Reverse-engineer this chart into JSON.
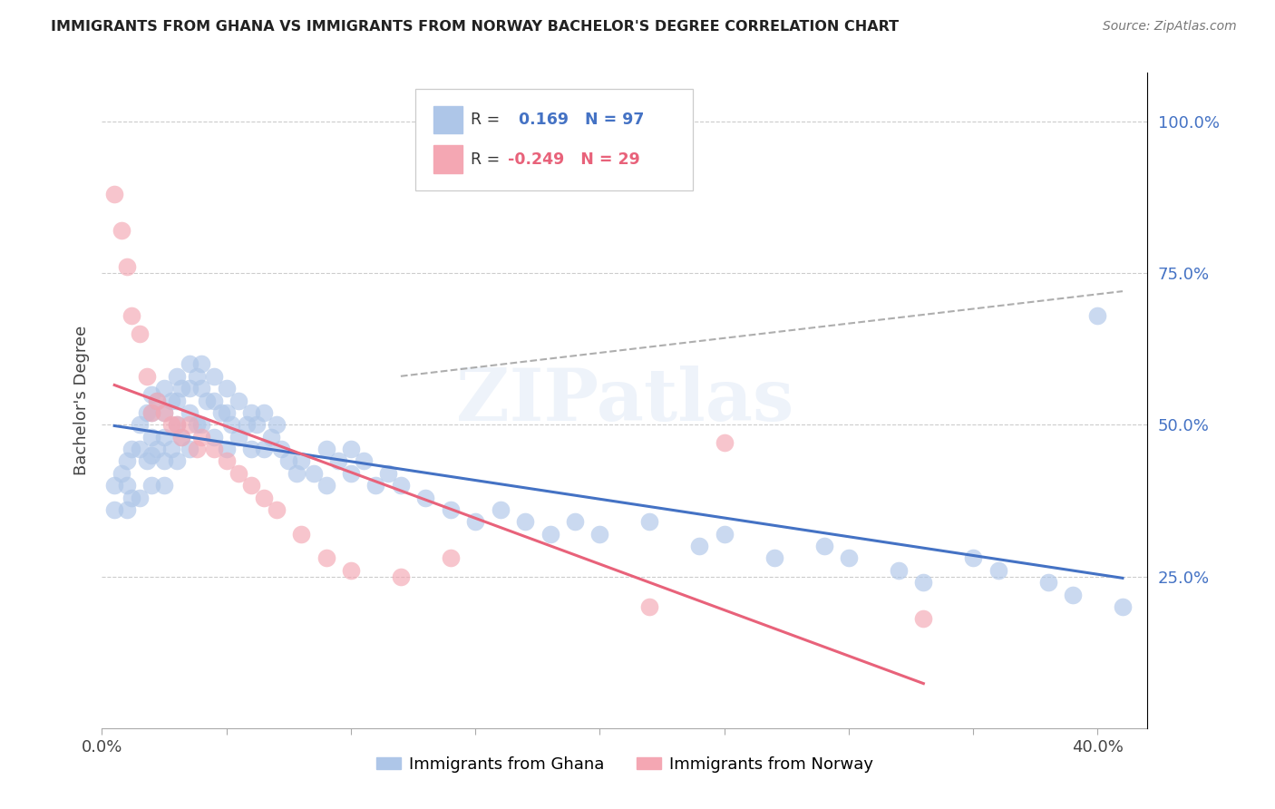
{
  "title": "IMMIGRANTS FROM GHANA VS IMMIGRANTS FROM NORWAY BACHELOR'S DEGREE CORRELATION CHART",
  "source": "Source: ZipAtlas.com",
  "ylabel": "Bachelor's Degree",
  "right_yticks": [
    "100.0%",
    "75.0%",
    "50.0%",
    "25.0%"
  ],
  "right_ytick_vals": [
    1.0,
    0.75,
    0.5,
    0.25
  ],
  "xlim": [
    0.0,
    0.42
  ],
  "ylim": [
    0.0,
    1.08
  ],
  "ghana_R": 0.169,
  "ghana_N": 97,
  "norway_R": -0.249,
  "norway_N": 29,
  "ghana_color": "#aec6e8",
  "norway_color": "#f4a7b3",
  "ghana_line_color": "#4472c4",
  "norway_line_color": "#e8627a",
  "trend_line_color": "#a0a0a0",
  "background_color": "#ffffff",
  "watermark": "ZIPatlas",
  "ghana_points_x": [
    0.005,
    0.005,
    0.008,
    0.01,
    0.01,
    0.01,
    0.012,
    0.012,
    0.015,
    0.015,
    0.015,
    0.018,
    0.018,
    0.02,
    0.02,
    0.02,
    0.02,
    0.02,
    0.022,
    0.022,
    0.025,
    0.025,
    0.025,
    0.025,
    0.025,
    0.028,
    0.028,
    0.03,
    0.03,
    0.03,
    0.03,
    0.032,
    0.032,
    0.035,
    0.035,
    0.035,
    0.035,
    0.038,
    0.038,
    0.04,
    0.04,
    0.04,
    0.042,
    0.045,
    0.045,
    0.045,
    0.048,
    0.05,
    0.05,
    0.05,
    0.052,
    0.055,
    0.055,
    0.058,
    0.06,
    0.06,
    0.062,
    0.065,
    0.065,
    0.068,
    0.07,
    0.072,
    0.075,
    0.078,
    0.08,
    0.085,
    0.09,
    0.09,
    0.095,
    0.1,
    0.1,
    0.105,
    0.11,
    0.115,
    0.12,
    0.13,
    0.14,
    0.15,
    0.16,
    0.17,
    0.18,
    0.19,
    0.2,
    0.22,
    0.24,
    0.25,
    0.27,
    0.29,
    0.3,
    0.32,
    0.33,
    0.35,
    0.36,
    0.38,
    0.39,
    0.4,
    0.41
  ],
  "ghana_points_y": [
    0.4,
    0.36,
    0.42,
    0.44,
    0.4,
    0.36,
    0.46,
    0.38,
    0.5,
    0.46,
    0.38,
    0.52,
    0.44,
    0.55,
    0.52,
    0.48,
    0.45,
    0.4,
    0.54,
    0.46,
    0.56,
    0.52,
    0.48,
    0.44,
    0.4,
    0.54,
    0.46,
    0.58,
    0.54,
    0.5,
    0.44,
    0.56,
    0.48,
    0.6,
    0.56,
    0.52,
    0.46,
    0.58,
    0.5,
    0.6,
    0.56,
    0.5,
    0.54,
    0.58,
    0.54,
    0.48,
    0.52,
    0.56,
    0.52,
    0.46,
    0.5,
    0.54,
    0.48,
    0.5,
    0.52,
    0.46,
    0.5,
    0.52,
    0.46,
    0.48,
    0.5,
    0.46,
    0.44,
    0.42,
    0.44,
    0.42,
    0.46,
    0.4,
    0.44,
    0.46,
    0.42,
    0.44,
    0.4,
    0.42,
    0.4,
    0.38,
    0.36,
    0.34,
    0.36,
    0.34,
    0.32,
    0.34,
    0.32,
    0.34,
    0.3,
    0.32,
    0.28,
    0.3,
    0.28,
    0.26,
    0.24,
    0.28,
    0.26,
    0.24,
    0.22,
    0.68,
    0.2
  ],
  "norway_points_x": [
    0.005,
    0.008,
    0.01,
    0.012,
    0.015,
    0.018,
    0.02,
    0.022,
    0.025,
    0.028,
    0.03,
    0.032,
    0.035,
    0.038,
    0.04,
    0.045,
    0.05,
    0.055,
    0.06,
    0.065,
    0.07,
    0.08,
    0.09,
    0.1,
    0.12,
    0.14,
    0.22,
    0.25,
    0.33
  ],
  "norway_points_y": [
    0.88,
    0.82,
    0.76,
    0.68,
    0.65,
    0.58,
    0.52,
    0.54,
    0.52,
    0.5,
    0.5,
    0.48,
    0.5,
    0.46,
    0.48,
    0.46,
    0.44,
    0.42,
    0.4,
    0.38,
    0.36,
    0.32,
    0.28,
    0.26,
    0.25,
    0.28,
    0.2,
    0.47,
    0.18
  ],
  "ghana_trend_x": [
    0.005,
    0.41
  ],
  "norway_trend_x": [
    0.005,
    0.33
  ],
  "dashed_trend_x": [
    0.12,
    0.41
  ],
  "dashed_trend_y": [
    0.58,
    0.72
  ]
}
